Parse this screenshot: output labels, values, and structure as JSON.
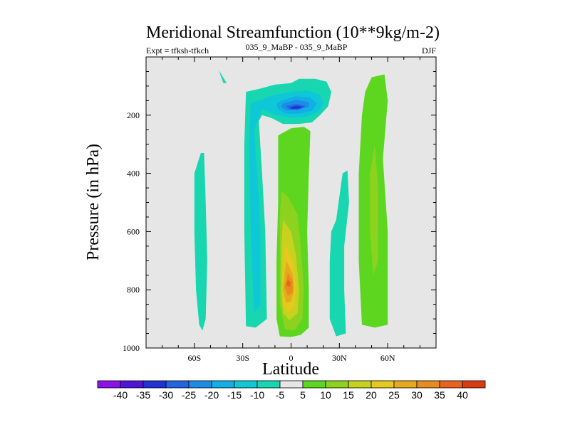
{
  "chart_data": {
    "type": "filled-contour",
    "title": "Meridional Streamfunction (10**9kg/m-2)",
    "experiment_label": "Expt = tfksh-tfkch",
    "case_label": "035_9_MaBP - 035_9_MaBP",
    "season_label": "DJF",
    "xlabel": "Latitude",
    "ylabel": "Pressure (in hPa)",
    "xlim": [
      -90,
      90
    ],
    "ylim": [
      1000,
      0
    ],
    "xticks": [
      {
        "value": -60,
        "label": "60S"
      },
      {
        "value": -30,
        "label": "30S"
      },
      {
        "value": 0,
        "label": "0"
      },
      {
        "value": 30,
        "label": "30N"
      },
      {
        "value": 60,
        "label": "60N"
      }
    ],
    "yticks": [
      {
        "value": 200,
        "label": "200"
      },
      {
        "value": 400,
        "label": "400"
      },
      {
        "value": 600,
        "label": "600"
      },
      {
        "value": 800,
        "label": "800"
      },
      {
        "value": 1000,
        "label": "1000"
      }
    ],
    "levels": [
      -40,
      -35,
      -30,
      -25,
      -20,
      -15,
      -10,
      -5,
      5,
      10,
      15,
      20,
      25,
      30,
      35,
      40
    ],
    "colors": [
      "#8c14e6",
      "#5014d8",
      "#2330d5",
      "#2264e0",
      "#1c8ce6",
      "#12aee6",
      "#0ec8d8",
      "#17d6b0",
      "#e6e6e6",
      "#5cd61e",
      "#8cd21e",
      "#c8d21e",
      "#e6c81e",
      "#e6aa1e",
      "#e68c1e",
      "#e6641e",
      "#d83c14"
    ],
    "background": "#e6e6e6",
    "regions": [
      {
        "name": "contour-band-nh-upper-neg-outer",
        "level": -5,
        "points": [
          [
            -42,
            90
          ],
          [
            -45,
            45
          ],
          [
            -40,
            90
          ]
        ]
      },
      {
        "name": "contour-band-sh-neg-cell",
        "level": -5,
        "points": [
          [
            -56,
            330
          ],
          [
            -60,
            400
          ],
          [
            -60,
            600
          ],
          [
            -59,
            800
          ],
          [
            -57,
            920
          ],
          [
            -55,
            940
          ],
          [
            -53,
            900
          ],
          [
            -52,
            700
          ],
          [
            -53,
            500
          ],
          [
            -54,
            330
          ]
        ]
      },
      {
        "name": "contour-band-sh-upper-neg-outer",
        "level": -5,
        "points": [
          [
            -28,
            120
          ],
          [
            -20,
            110
          ],
          [
            -10,
            95
          ],
          [
            0,
            90
          ],
          [
            5,
            75
          ],
          [
            15,
            75
          ],
          [
            22,
            85
          ],
          [
            25,
            120
          ],
          [
            23,
            170
          ],
          [
            18,
            200
          ],
          [
            13,
            225
          ],
          [
            5,
            230
          ],
          [
            -5,
            230
          ],
          [
            -12,
            210
          ],
          [
            -18,
            200
          ],
          [
            -20,
            220
          ],
          [
            -18,
            400
          ],
          [
            -16,
            600
          ],
          [
            -15,
            900
          ],
          [
            -22,
            930
          ],
          [
            -28,
            925
          ],
          [
            -29,
            600
          ],
          [
            -29,
            300
          ]
        ]
      },
      {
        "name": "contour-band-upper-neg-10",
        "level": -10,
        "points": [
          [
            -25,
            160
          ],
          [
            -10,
            130
          ],
          [
            0,
            120
          ],
          [
            10,
            115
          ],
          [
            18,
            130
          ],
          [
            20,
            160
          ],
          [
            17,
            190
          ],
          [
            10,
            205
          ],
          [
            0,
            210
          ],
          [
            -12,
            195
          ],
          [
            -18,
            180
          ],
          [
            -23,
            250
          ],
          [
            -21,
            400
          ],
          [
            -19,
            600
          ],
          [
            -19,
            850
          ],
          [
            -23,
            880
          ],
          [
            -25,
            600
          ],
          [
            -26,
            300
          ]
        ]
      },
      {
        "name": "contour-band-upper-neg-15",
        "level": -15,
        "points": [
          [
            -6,
            150
          ],
          [
            3,
            135
          ],
          [
            12,
            140
          ],
          [
            16,
            160
          ],
          [
            13,
            185
          ],
          [
            5,
            195
          ],
          [
            -3,
            195
          ],
          [
            -8,
            180
          ],
          [
            -9,
            162
          ]
        ]
      },
      {
        "name": "contour-band-upper-neg-20",
        "level": -20,
        "points": [
          [
            -5,
            160
          ],
          [
            3,
            148
          ],
          [
            11,
            155
          ],
          [
            11,
            172
          ],
          [
            4,
            183
          ],
          [
            -3,
            183
          ],
          [
            -6,
            172
          ]
        ]
      },
      {
        "name": "contour-band-upper-neg-25",
        "level": -25,
        "points": [
          [
            -3,
            170
          ],
          [
            3,
            162
          ],
          [
            9,
            168
          ],
          [
            5,
            180
          ],
          [
            -1,
            180
          ]
        ]
      },
      {
        "name": "contour-band-upper-neg-30",
        "level": -30,
        "points": [
          [
            0,
            172
          ],
          [
            4,
            168
          ],
          [
            8,
            173
          ],
          [
            4,
            178
          ],
          [
            0,
            178
          ]
        ]
      },
      {
        "name": "contour-band-tropics-pos-5",
        "level": 5,
        "points": [
          [
            -8,
            270
          ],
          [
            0,
            245
          ],
          [
            8,
            240
          ],
          [
            12,
            255
          ],
          [
            11,
            400
          ],
          [
            10,
            600
          ],
          [
            11,
            800
          ],
          [
            11,
            930
          ],
          [
            6,
            955
          ],
          [
            0,
            962
          ],
          [
            -7,
            960
          ],
          [
            -9,
            900
          ],
          [
            -9,
            700
          ],
          [
            -8,
            500
          ]
        ]
      },
      {
        "name": "contour-band-tropics-pos-10",
        "level": 10,
        "points": [
          [
            -6,
            460
          ],
          [
            -2,
            480
          ],
          [
            4,
            540
          ],
          [
            6,
            650
          ],
          [
            8,
            800
          ],
          [
            7,
            900
          ],
          [
            2,
            940
          ],
          [
            -4,
            935
          ],
          [
            -7,
            850
          ],
          [
            -7,
            650
          ],
          [
            -7,
            550
          ]
        ]
      },
      {
        "name": "contour-band-tropics-pos-15",
        "level": 15,
        "points": [
          [
            -5,
            560
          ],
          [
            0,
            600
          ],
          [
            3,
            680
          ],
          [
            5,
            800
          ],
          [
            4,
            880
          ],
          [
            -1,
            905
          ],
          [
            -5,
            880
          ],
          [
            -6,
            800
          ],
          [
            -6,
            650
          ]
        ]
      },
      {
        "name": "contour-band-tropics-pos-20",
        "level": 20,
        "points": [
          [
            -4,
            640
          ],
          [
            1,
            700
          ],
          [
            3,
            780
          ],
          [
            2,
            850
          ],
          [
            -2,
            880
          ],
          [
            -5,
            850
          ],
          [
            -5,
            750
          ]
        ]
      },
      {
        "name": "contour-band-tropics-pos-25",
        "level": 25,
        "points": [
          [
            -3,
            700
          ],
          [
            1,
            745
          ],
          [
            2,
            800
          ],
          [
            0,
            840
          ],
          [
            -3,
            845
          ],
          [
            -5,
            800
          ],
          [
            -4,
            740
          ]
        ]
      },
      {
        "name": "contour-band-tropics-pos-30",
        "level": 30,
        "points": [
          [
            -2,
            740
          ],
          [
            1,
            770
          ],
          [
            1,
            810
          ],
          [
            -2,
            820
          ],
          [
            -4,
            790
          ]
        ]
      },
      {
        "name": "contour-band-tropics-pos-35",
        "level": 35,
        "points": [
          [
            -2,
            765
          ],
          [
            0,
            777
          ],
          [
            -1,
            790
          ],
          [
            -3,
            785
          ]
        ]
      },
      {
        "name": "contour-band-nh-sub-neg-cell",
        "level": -5,
        "points": [
          [
            35,
            390
          ],
          [
            36,
            500
          ],
          [
            33,
            650
          ],
          [
            33,
            800
          ],
          [
            34,
            950
          ],
          [
            28,
            960
          ],
          [
            24,
            900
          ],
          [
            24,
            700
          ],
          [
            25,
            600
          ],
          [
            28,
            560
          ],
          [
            32,
            400
          ]
        ]
      },
      {
        "name": "contour-band-nh-pos-cell",
        "level": 5,
        "points": [
          [
            50,
            70
          ],
          [
            58,
            60
          ],
          [
            60,
            150
          ],
          [
            57,
            350
          ],
          [
            60,
            600
          ],
          [
            60,
            800
          ],
          [
            60,
            920
          ],
          [
            52,
            930
          ],
          [
            44,
            920
          ],
          [
            42,
            700
          ],
          [
            42,
            400
          ],
          [
            44,
            200
          ],
          [
            46,
            120
          ]
        ]
      },
      {
        "name": "contour-band-nh-pos-cell-inner",
        "level": 10,
        "points": [
          [
            52,
            300
          ],
          [
            54,
            450
          ],
          [
            54,
            700
          ],
          [
            51,
            750
          ],
          [
            49,
            600
          ],
          [
            49,
            400
          ]
        ]
      }
    ]
  }
}
